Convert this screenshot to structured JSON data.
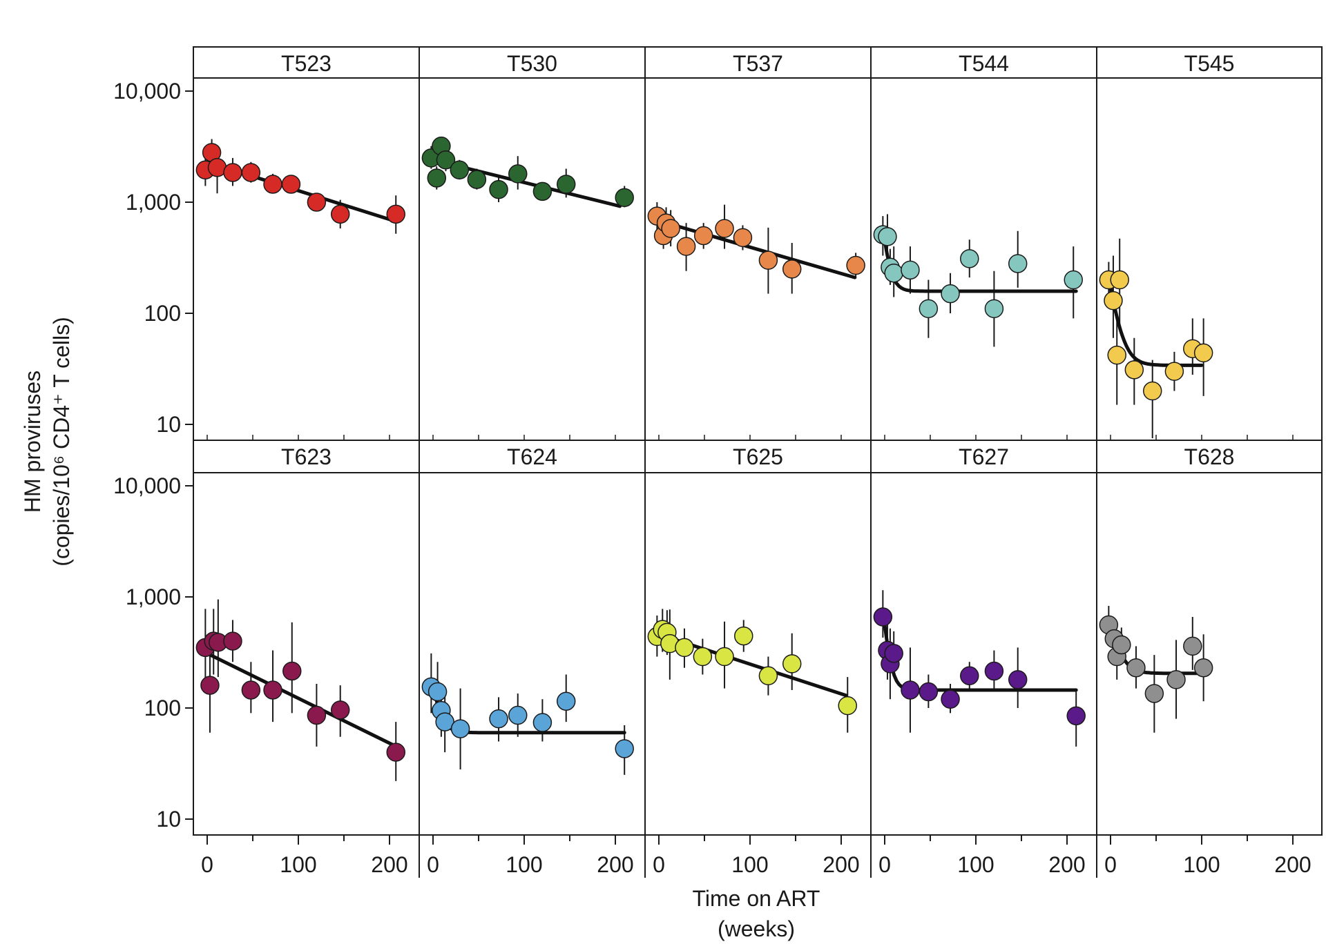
{
  "chart_data": {
    "type": "scatter",
    "layout": "faceted grid, 2 rows x 5 columns, shared log-scale y axis",
    "ylabel": "HM proviruses (copies/10⁶ CD4⁺ T cells)",
    "ylabel_line1": "HM proviruses",
    "ylabel_line2": "(copies/10⁶ CD4⁺ T cells)",
    "xlabel_line1": "Time on ART",
    "xlabel_line2": "(weeks)",
    "y_scale": "log",
    "ylim": [
      7,
      12000
    ],
    "xlim": [
      -15,
      235
    ],
    "y_ticks": [
      10,
      100,
      1000,
      10000
    ],
    "y_tick_labels": [
      "10",
      "100",
      "1,000",
      "10,000"
    ],
    "x_ticks": [
      0,
      100,
      200
    ],
    "x_tick_labels": [
      "0",
      "100",
      "200"
    ],
    "x_minor_ticks": [
      50,
      150
    ],
    "grid": false,
    "legend": "none",
    "panels": [
      {
        "name": "T523",
        "color": "#d62a26",
        "points": [
          {
            "x": -2,
            "y": 1950,
            "lo": 1400,
            "hi": 2700
          },
          {
            "x": 5,
            "y": 2800,
            "lo": 2100,
            "hi": 3700
          },
          {
            "x": 11,
            "y": 2050,
            "lo": 1200,
            "hi": 3200
          },
          {
            "x": 28,
            "y": 1850,
            "lo": 1400,
            "hi": 2500
          },
          {
            "x": 48,
            "y": 1850,
            "lo": 1500,
            "hi": 2300
          },
          {
            "x": 72,
            "y": 1450,
            "lo": 1200,
            "hi": 1800
          },
          {
            "x": 92,
            "y": 1450,
            "lo": 1250,
            "hi": 1700
          },
          {
            "x": 120,
            "y": 1000,
            "lo": 900,
            "hi": 1150
          },
          {
            "x": 146,
            "y": 780,
            "lo": 580,
            "hi": 1050
          },
          {
            "x": 207,
            "y": 780,
            "lo": 520,
            "hi": 1150
          }
        ],
        "fit": {
          "model": "linear",
          "x": [
            0,
            205
          ],
          "y": [
            2300,
            680
          ]
        }
      },
      {
        "name": "T530",
        "color": "#2b6631",
        "points": [
          {
            "x": -2,
            "y": 2500,
            "lo": 2000,
            "hi": 3200
          },
          {
            "x": 4,
            "y": 1650,
            "lo": 1300,
            "hi": 2100
          },
          {
            "x": 9,
            "y": 3200,
            "lo": 2600,
            "hi": 3800
          },
          {
            "x": 14,
            "y": 2400,
            "lo": 1900,
            "hi": 3000
          },
          {
            "x": 29,
            "y": 1950,
            "lo": 1600,
            "hi": 2400
          },
          {
            "x": 48,
            "y": 1600,
            "lo": 1300,
            "hi": 2000
          },
          {
            "x": 72,
            "y": 1300,
            "lo": 1000,
            "hi": 1700
          },
          {
            "x": 93,
            "y": 1800,
            "lo": 1300,
            "hi": 2600
          },
          {
            "x": 120,
            "y": 1250,
            "lo": 1050,
            "hi": 1500
          },
          {
            "x": 146,
            "y": 1450,
            "lo": 1100,
            "hi": 2000
          },
          {
            "x": 210,
            "y": 1100,
            "lo": 900,
            "hi": 1400
          }
        ],
        "fit": {
          "model": "linear",
          "x": [
            0,
            205
          ],
          "y": [
            2400,
            920
          ]
        }
      },
      {
        "name": "T537",
        "color": "#e8874a",
        "points": [
          {
            "x": -2,
            "y": 750,
            "lo": 550,
            "hi": 1000
          },
          {
            "x": 5,
            "y": 500,
            "lo": 380,
            "hi": 650
          },
          {
            "x": 8,
            "y": 650,
            "lo": 480,
            "hi": 900
          },
          {
            "x": 13,
            "y": 580,
            "lo": 400,
            "hi": 850
          },
          {
            "x": 30,
            "y": 400,
            "lo": 240,
            "hi": 650
          },
          {
            "x": 49,
            "y": 500,
            "lo": 380,
            "hi": 650
          },
          {
            "x": 72,
            "y": 580,
            "lo": 380,
            "hi": 950
          },
          {
            "x": 92,
            "y": 480,
            "lo": 370,
            "hi": 620
          },
          {
            "x": 120,
            "y": 300,
            "lo": 150,
            "hi": 590
          },
          {
            "x": 146,
            "y": 250,
            "lo": 150,
            "hi": 430
          },
          {
            "x": 216,
            "y": 270,
            "lo": 210,
            "hi": 350
          }
        ],
        "fit": {
          "model": "linear",
          "x": [
            0,
            215
          ],
          "y": [
            680,
            210
          ]
        }
      },
      {
        "name": "T544",
        "color": "#85c6be",
        "points": [
          {
            "x": -2,
            "y": 510,
            "lo": 330,
            "hi": 750
          },
          {
            "x": 3,
            "y": 490,
            "lo": 310,
            "hi": 780
          },
          {
            "x": 6,
            "y": 260,
            "lo": 180,
            "hi": 380
          },
          {
            "x": 10,
            "y": 230,
            "lo": 140,
            "hi": 400
          },
          {
            "x": 28,
            "y": 245,
            "lo": 150,
            "hi": 400
          },
          {
            "x": 48,
            "y": 110,
            "lo": 60,
            "hi": 200
          },
          {
            "x": 72,
            "y": 150,
            "lo": 100,
            "hi": 230
          },
          {
            "x": 93,
            "y": 310,
            "lo": 210,
            "hi": 460
          },
          {
            "x": 120,
            "y": 110,
            "lo": 50,
            "hi": 240
          },
          {
            "x": 146,
            "y": 280,
            "lo": 170,
            "hi": 550
          },
          {
            "x": 207,
            "y": 200,
            "lo": 90,
            "hi": 400
          }
        ],
        "fit": {
          "model": "biphasic",
          "x": [
            0,
            210
          ],
          "y": [
            450,
            158
          ],
          "plateau": 158,
          "k": 0.18
        }
      },
      {
        "name": "T545",
        "color": "#f2cb4e",
        "points": [
          {
            "x": -2,
            "y": 200,
            "lo": 130,
            "hi": 290
          },
          {
            "x": 3,
            "y": 130,
            "lo": 60,
            "hi": 330
          },
          {
            "x": 10,
            "y": 200,
            "lo": 80,
            "hi": 470
          },
          {
            "x": 7,
            "y": 42,
            "lo": 15,
            "hi": 90
          },
          {
            "x": 26,
            "y": 31,
            "lo": 15,
            "hi": 60
          },
          {
            "x": 46,
            "y": 20,
            "lo": 7.5,
            "hi": 38
          },
          {
            "x": 70,
            "y": 30,
            "lo": 20,
            "hi": 45
          },
          {
            "x": 90,
            "y": 48,
            "lo": 28,
            "hi": 90
          },
          {
            "x": 102,
            "y": 44,
            "lo": 18,
            "hi": 90
          }
        ],
        "fit": {
          "model": "biphasic",
          "x": [
            0,
            100
          ],
          "y": [
            170,
            34
          ],
          "plateau": 34,
          "k": 0.12
        }
      },
      {
        "name": "T623",
        "color": "#8a1a4e",
        "points": [
          {
            "x": -2,
            "y": 350,
            "lo": 180,
            "hi": 780
          },
          {
            "x": 3,
            "y": 160,
            "lo": 60,
            "hi": 380
          },
          {
            "x": 7,
            "y": 400,
            "lo": 200,
            "hi": 780
          },
          {
            "x": 12,
            "y": 390,
            "lo": 190,
            "hi": 950
          },
          {
            "x": 28,
            "y": 400,
            "lo": 260,
            "hi": 620
          },
          {
            "x": 48,
            "y": 145,
            "lo": 90,
            "hi": 260
          },
          {
            "x": 72,
            "y": 145,
            "lo": 75,
            "hi": 330
          },
          {
            "x": 93,
            "y": 215,
            "lo": 90,
            "hi": 590
          },
          {
            "x": 120,
            "y": 86,
            "lo": 45,
            "hi": 165
          },
          {
            "x": 146,
            "y": 96,
            "lo": 55,
            "hi": 160
          },
          {
            "x": 207,
            "y": 40,
            "lo": 22,
            "hi": 75
          }
        ],
        "fit": {
          "model": "linear",
          "x": [
            0,
            205
          ],
          "y": [
            310,
            46
          ]
        }
      },
      {
        "name": "T624",
        "color": "#5aa4d8",
        "points": [
          {
            "x": -2,
            "y": 155,
            "lo": 90,
            "hi": 310
          },
          {
            "x": 5,
            "y": 140,
            "lo": 80,
            "hi": 260
          },
          {
            "x": 9,
            "y": 95,
            "lo": 55,
            "hi": 160
          },
          {
            "x": 13,
            "y": 75,
            "lo": 40,
            "hi": 145
          },
          {
            "x": 30,
            "y": 65,
            "lo": 28,
            "hi": 150
          },
          {
            "x": 72,
            "y": 80,
            "lo": 50,
            "hi": 125
          },
          {
            "x": 93,
            "y": 86,
            "lo": 55,
            "hi": 135
          },
          {
            "x": 120,
            "y": 74,
            "lo": 50,
            "hi": 120
          },
          {
            "x": 146,
            "y": 115,
            "lo": 75,
            "hi": 200
          },
          {
            "x": 210,
            "y": 43,
            "lo": 25,
            "hi": 70
          }
        ],
        "fit": {
          "model": "biphasic",
          "x": [
            0,
            210
          ],
          "y": [
            160,
            60
          ],
          "plateau": 60,
          "k": 0.15
        }
      },
      {
        "name": "T625",
        "color": "#d8e542",
        "points": [
          {
            "x": -2,
            "y": 440,
            "lo": 290,
            "hi": 680
          },
          {
            "x": 4,
            "y": 510,
            "lo": 320,
            "hi": 780
          },
          {
            "x": 9,
            "y": 480,
            "lo": 300,
            "hi": 760
          },
          {
            "x": 12,
            "y": 380,
            "lo": 180,
            "hi": 770
          },
          {
            "x": 28,
            "y": 350,
            "lo": 230,
            "hi": 520
          },
          {
            "x": 48,
            "y": 290,
            "lo": 200,
            "hi": 420
          },
          {
            "x": 72,
            "y": 290,
            "lo": 150,
            "hi": 600
          },
          {
            "x": 93,
            "y": 445,
            "lo": 320,
            "hi": 620
          },
          {
            "x": 120,
            "y": 195,
            "lo": 130,
            "hi": 290
          },
          {
            "x": 146,
            "y": 250,
            "lo": 145,
            "hi": 470
          },
          {
            "x": 207,
            "y": 105,
            "lo": 60,
            "hi": 190
          }
        ],
        "fit": {
          "model": "linear",
          "x": [
            0,
            205
          ],
          "y": [
            460,
            130
          ]
        }
      },
      {
        "name": "T627",
        "color": "#5a1a8a",
        "points": [
          {
            "x": -2,
            "y": 660,
            "lo": 430,
            "hi": 1150
          },
          {
            "x": 3,
            "y": 330,
            "lo": 180,
            "hi": 640
          },
          {
            "x": 6,
            "y": 250,
            "lo": 120,
            "hi": 520
          },
          {
            "x": 10,
            "y": 310,
            "lo": 200,
            "hi": 490
          },
          {
            "x": 28,
            "y": 145,
            "lo": 60,
            "hi": 350
          },
          {
            "x": 48,
            "y": 140,
            "lo": 100,
            "hi": 200
          },
          {
            "x": 72,
            "y": 120,
            "lo": 90,
            "hi": 165
          },
          {
            "x": 93,
            "y": 195,
            "lo": 150,
            "hi": 260
          },
          {
            "x": 120,
            "y": 215,
            "lo": 145,
            "hi": 330
          },
          {
            "x": 146,
            "y": 180,
            "lo": 100,
            "hi": 350
          },
          {
            "x": 210,
            "y": 85,
            "lo": 45,
            "hi": 140
          }
        ],
        "fit": {
          "model": "biphasic",
          "x": [
            0,
            210
          ],
          "y": [
            560,
            145
          ],
          "plateau": 145,
          "k": 0.2
        }
      },
      {
        "name": "T628",
        "color": "#8f8f8f",
        "points": [
          {
            "x": -2,
            "y": 560,
            "lo": 380,
            "hi": 830
          },
          {
            "x": 4,
            "y": 420,
            "lo": 280,
            "hi": 650
          },
          {
            "x": 7,
            "y": 290,
            "lo": 180,
            "hi": 450
          },
          {
            "x": 12,
            "y": 370,
            "lo": 260,
            "hi": 530
          },
          {
            "x": 28,
            "y": 230,
            "lo": 150,
            "hi": 360
          },
          {
            "x": 48,
            "y": 135,
            "lo": 60,
            "hi": 300
          },
          {
            "x": 72,
            "y": 180,
            "lo": 80,
            "hi": 410
          },
          {
            "x": 90,
            "y": 360,
            "lo": 220,
            "hi": 660
          },
          {
            "x": 102,
            "y": 230,
            "lo": 115,
            "hi": 460
          }
        ],
        "fit": {
          "model": "biphasic",
          "x": [
            0,
            100
          ],
          "y": [
            620,
            205
          ],
          "plateau": 205,
          "k": 0.12
        }
      }
    ]
  }
}
